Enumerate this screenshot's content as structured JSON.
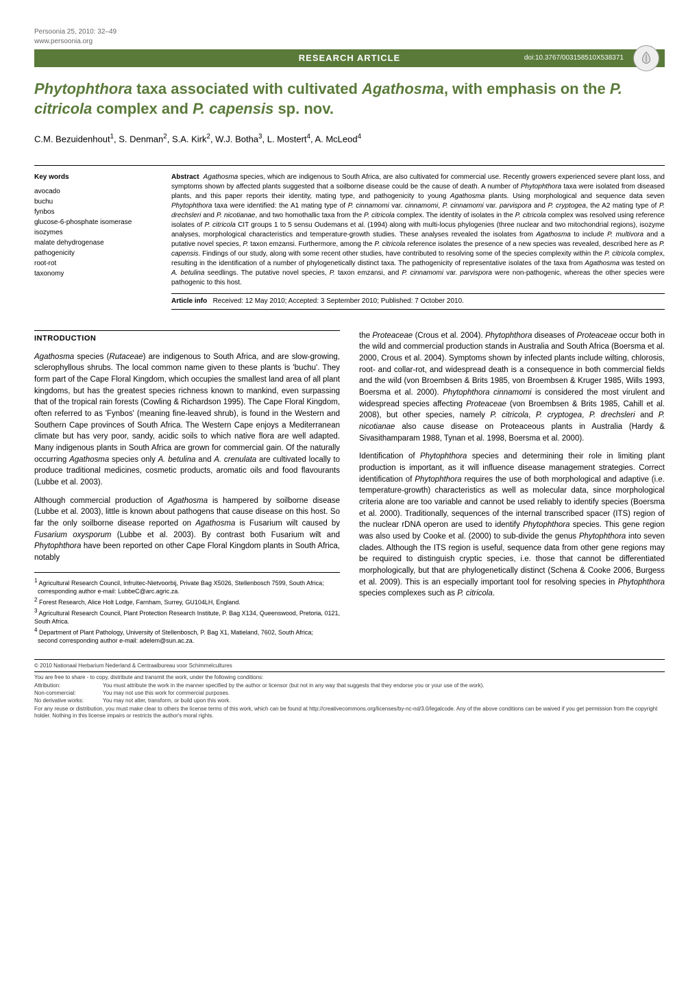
{
  "meta": {
    "journal_ref": "Persoonia 25, 2010: 32–49",
    "url": "www.persoonia.org",
    "header_label": "RESEARCH  ARTICLE",
    "doi": "doi:10.3767/003158510X538371"
  },
  "title_html": "<i>Phytophthora</i> taxa associated with cultivated <i>Agathosma</i>, with emphasis on the <i>P. citricola</i> complex and <i>P. capensis</i> sp. nov.",
  "authors_html": "C.M. Bezuidenhout<sup>1</sup>, S. Denman<sup>2</sup>, S.A. Kirk<sup>2</sup>, W.J. Botha<sup>3</sup>, L. Mostert<sup>4</sup>, A. McLeod<sup>4</sup>",
  "keywords": {
    "heading": "Key words",
    "items": [
      "avocado",
      "buchu",
      "fynbos",
      "glucose-6-phosphate isomerase",
      "isozymes",
      "malate dehydrogenase",
      "pathogenicity",
      "root-rot",
      "taxonomy"
    ]
  },
  "abstract": {
    "label": "Abstract",
    "text_html": "<i>Agathosma</i> species, which are indigenous to South Africa, are also cultivated for commercial use. Recently growers experienced severe plant loss, and symptoms shown by affected plants suggested that a soilborne disease could be the cause of death. A number of <i>Phytophthora</i> taxa were isolated from diseased plants, and this paper reports their identity, mating type, and pathogenicity to young <i>Agathosma</i> plants. Using morphological and sequence data seven <i>Phytophthora</i> taxa were identified: the A1 mating type of <i>P. cinnamomi</i> var. <i>cinnamomi</i>, <i>P. cinnamomi</i> var. <i>parvispora</i> and <i>P. cryptogea</i>, the A2 mating type of <i>P. drechsleri</i> and <i>P. nicotianae</i>, and two homothallic taxa from the <i>P. citricola</i> complex. The identity of isolates in the <i>P. citricola</i> complex was resolved using reference isolates of <i>P. citricola</i> CIT groups 1 to 5 sensu Oudemans et al. (1994) along with multi-locus phylogenies (three nuclear and two mitochondrial regions), isozyme analyses, morphological characteristics and temperature-growth studies. These analyses revealed the isolates from <i>Agathosma</i> to include <i>P. multivora</i> and a putative novel species, <i>P.</i> taxon emzansi. Furthermore, among the <i>P. citricola</i> reference isolates the presence of a new species was revealed, described here as <i>P. capensis</i>. Findings of our study, along with some recent other studies, have contributed to resolving some of the species complexity within the <i>P. citricola</i> complex, resulting in the identification of a number of phylogenetically distinct taxa. The pathogenicity of representative isolates of the taxa from <i>Agathosma</i> was tested on <i>A. betulina</i> seedlings. The putative novel species, <i>P.</i> taxon emzansi, and <i>P. cinnamomi</i> var. <i>parvispora</i> were non-pathogenic, whereas the other species were pathogenic to this host."
  },
  "article_info": {
    "label": "Article info",
    "text": "Received: 12 May 2010; Accepted: 3 September 2010; Published: 7 October 2010."
  },
  "introduction": {
    "heading": "INTRODUCTION",
    "left_col_html": "<p><i>Agathosma</i> species (<i>Rutaceae</i>) are indigenous to South Africa, and are slow-growing, sclerophyllous shrubs. The local common name given to these plants is 'buchu'. They form part of the Cape Floral Kingdom, which occupies the smallest land area of all plant kingdoms, but has the greatest species richness known to mankind, even surpassing that of the tropical rain forests (Cowling &amp; Richardson 1995). The Cape Floral Kingdom, often referred to as 'Fynbos' (meaning fine-leaved shrub), is found in the Western and Southern Cape provinces of South Africa. The Western Cape enjoys a Mediterranean climate but has very poor, sandy, acidic soils to which native flora are well adapted. Many indigenous plants in South Africa are grown for commercial gain. Of the naturally occurring <i>Agathosma</i> species only <i>A. betulina</i> and <i>A. crenulata</i> are cultivated locally to produce traditional medicines, cosmetic products, aromatic oils and food flavourants (Lubbe et al. 2003).</p><p>Although commercial production of <i>Agathosma</i> is hampered by soilborne disease (Lubbe et al. 2003), little is known about pathogens that cause disease on this host. So far the only soilborne disease reported on <i>Agathosma</i> is Fusarium wilt caused by <i>Fusarium oxysporum</i> (Lubbe et al. 2003). By contrast both Fusarium wilt and <i>Phytophthora</i> have been reported on other Cape Floral Kingdom plants in South Africa, notably</p>",
    "right_col_html": "<p>the <i>Proteaceae</i> (Crous et al. 2004). <i>Phytophthora</i> diseases of <i>Proteaceae</i> occur both in the wild and commercial production stands in Australia and South Africa (Boersma et al. 2000, Crous et al. 2004). Symptoms shown by infected plants include wilting, chlorosis, root- and collar-rot, and widespread death is a consequence in both commercial fields and the wild (von Broembsen &amp; Brits 1985, von Broembsen &amp; Kruger 1985, Wills 1993, Boersma et al. 2000). <i>Phytophthora cinnamomi</i> is considered the most virulent and widespread species affecting <i>Proteaceae</i> (von Broembsen &amp; Brits 1985, Cahill et al. 2008), but other species, namely <i>P. citricola</i>, <i>P. cryptogea</i>, <i>P. drechsleri</i> and <i>P. nicotianae</i> also cause disease on Proteaceous plants in Australia (Hardy &amp; Sivasithamparam 1988, Tynan et al. 1998, Boersma et al. 2000).</p><p>Identification of <i>Phytophthora</i> species and determining their role in limiting plant production is important, as it will influence disease management strategies. Correct identification of <i>Phytophthora</i> requires the use of both morphological and adaptive (i.e. temperature-growth) characteristics as well as molecular data, since morphological criteria alone are too variable and cannot be used reliably to identify species (Boersma et al. 2000). Traditionally, sequences of the internal transcribed spacer (ITS) region of the nuclear rDNA operon are used to identify <i>Phytophthora</i> species. This gene region was also used by Cooke et al. (2000) to sub-divide the genus <i>Phytophthora</i> into seven clades. Although the ITS region is useful, sequence data from other gene regions may be required to distinguish cryptic species, i.e. those that cannot be differentiated morphologically, but that are phylogenetically distinct (Schena &amp; Cooke 2006, Burgess et al. 2009). This is an especially important tool for resolving species in <i>Phytophthora</i> species complexes such as <i>P. citricola</i>.</p>"
  },
  "footnotes_html": "<sup>1</sup> Agricultural Research Council, Infruitec-Nietvoorbij, Private Bag X5026, Stellenbosch 7599, South Africa;<br>&nbsp;&nbsp;corresponding author e-mail: LubbeC@arc.agric.za.<br><sup>2</sup> Forest Research, Alice Holt Lodge, Farnham, Surrey, GU104LH, England.<br><sup>3</sup> Agricultural Research Council, Plant Protection Research Institute, P. Bag X134, Queenswood, Pretoria, 0121, South Africa.<br><sup>4</sup> Department of Plant Pathology, University of Stellenbosch, P. Bag X1, Matieland, 7602, South Africa;<br>&nbsp;&nbsp;second corresponding author e-mail: adelem@sun.ac.za.",
  "copyright": {
    "line1": "© 2010   Nationaal Herbarium Nederland & Centraalbureau voor Schimmelcultures",
    "share": "You are free to share - to copy, distribute and transmit the work, under the following conditions:",
    "attribution_label": "Attribution:",
    "attribution_text": "You must attribute the work in the manner specified by the author or licensor (but not in any way that suggests that they endorse you or your use of the work).",
    "noncomm_label": "Non-commercial:",
    "noncomm_text": "You may not use this work for commercial purposes.",
    "noderiv_label": "No derivative works:",
    "noderiv_text": "You may not alter, transform, or build upon this work.",
    "footer": "For any reuse or distribution, you must make clear to others the license terms of this work, which can be found at http://creativecommons.org/licenses/by-nc-nd/3.0/legalcode. Any of the above conditions can be waived if you get permission from the copyright holder. Nothing in this license impairs or restricts the author's moral rights."
  },
  "colors": {
    "accent": "#5a7a3a",
    "text": "#000000",
    "meta_text": "#666666"
  }
}
